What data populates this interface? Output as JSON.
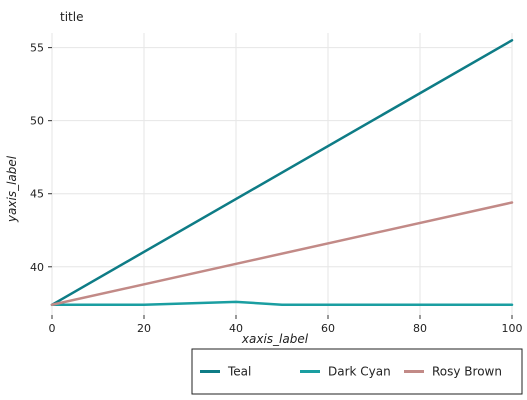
{
  "chart_data": {
    "type": "line",
    "title": "title",
    "xlabel": "xaxis_label",
    "ylabel": "yaxis_label",
    "xlim": [
      0,
      100
    ],
    "ylim": [
      36.7,
      56
    ],
    "x_ticks": [
      0,
      20,
      40,
      60,
      80,
      100
    ],
    "y_ticks": [
      40,
      45,
      50,
      55
    ],
    "grid": true,
    "legend_position": "bottom-right",
    "series": [
      {
        "name": "Teal",
        "color": "#0e7c86",
        "x": [
          0,
          100
        ],
        "y": [
          37.4,
          55.5
        ]
      },
      {
        "name": "Dark Cyan",
        "color": "#1a9ea1",
        "x": [
          0,
          10,
          20,
          40,
          50,
          60,
          80,
          100
        ],
        "y": [
          37.4,
          37.4,
          37.4,
          37.6,
          37.4,
          37.4,
          37.4,
          37.4
        ]
      },
      {
        "name": "Rosy Brown",
        "color": "#c28a87",
        "x": [
          0,
          100
        ],
        "y": [
          37.4,
          44.4
        ]
      }
    ],
    "legend_order": [
      "Teal",
      "Dark Cyan",
      "Rosy Brown"
    ]
  }
}
